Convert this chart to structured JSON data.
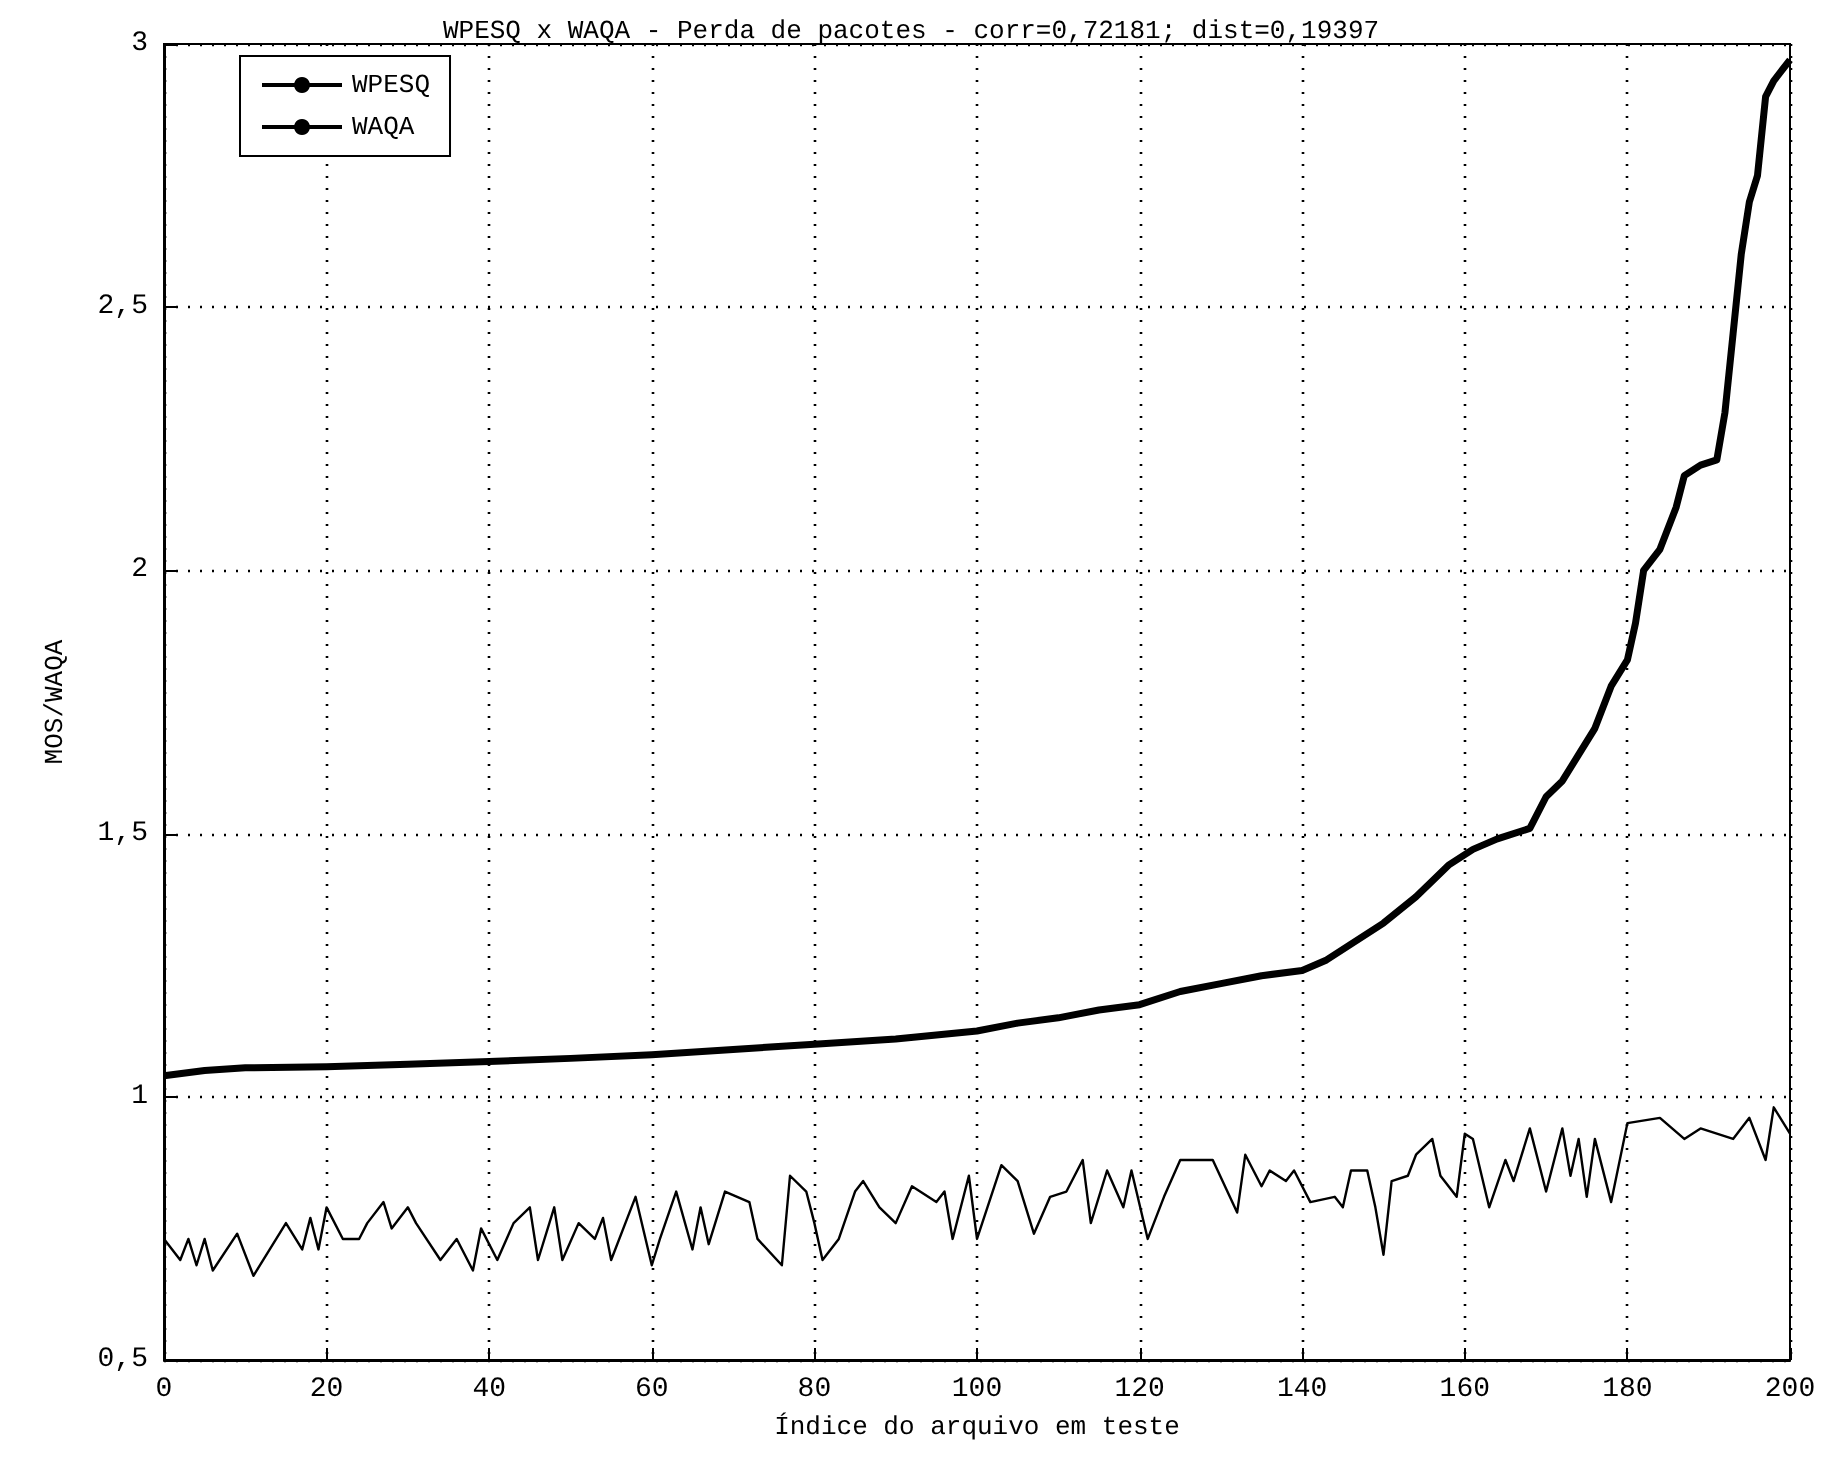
{
  "chart_data": {
    "type": "line",
    "title": "WPESQ x WAQA - Perda de pacotes - corr=0,72181; dist=0,19397",
    "xlabel": "Índice do arquivo em teste",
    "ylabel": "MOS/WAQA",
    "xlim": [
      0,
      200
    ],
    "xticks": [
      0,
      20,
      40,
      60,
      80,
      100,
      120,
      140,
      160,
      180,
      200
    ],
    "ylim": [
      0.5,
      3
    ],
    "yticks": [
      {
        "value": 0.5,
        "label": "0,5"
      },
      1,
      {
        "value": 1.5,
        "label": "1,5"
      },
      2,
      {
        "value": 2.5,
        "label": "2,5"
      },
      3
    ],
    "grid": true,
    "legend": "top left",
    "series": [
      {
        "name": "WPESQ",
        "color": "#000000",
        "x": [
          0,
          5,
          10,
          20,
          30,
          40,
          50,
          60,
          70,
          80,
          90,
          100,
          105,
          110,
          115,
          120,
          125,
          130,
          135,
          140,
          143,
          146,
          150,
          154,
          158,
          161,
          164,
          168,
          170,
          172,
          174,
          176,
          178,
          180,
          181,
          182,
          184,
          186,
          187,
          189,
          191,
          192,
          193,
          194,
          195,
          196,
          197,
          198,
          200
        ],
        "values": [
          1.04,
          1.05,
          1.055,
          1.057,
          1.062,
          1.067,
          1.073,
          1.08,
          1.09,
          1.1,
          1.11,
          1.125,
          1.14,
          1.15,
          1.165,
          1.175,
          1.2,
          1.215,
          1.23,
          1.24,
          1.26,
          1.29,
          1.33,
          1.38,
          1.44,
          1.47,
          1.49,
          1.51,
          1.57,
          1.6,
          1.65,
          1.7,
          1.78,
          1.83,
          1.9,
          2.0,
          2.04,
          2.12,
          2.18,
          2.2,
          2.21,
          2.3,
          2.45,
          2.6,
          2.7,
          2.75,
          2.9,
          2.93,
          2.97
        ]
      },
      {
        "name": "WAQA",
        "color": "#000000",
        "x": [
          0,
          2,
          3,
          4,
          5,
          6,
          9,
          11,
          15,
          17,
          18,
          19,
          20,
          22,
          24,
          25,
          27,
          28,
          30,
          31,
          34,
          36,
          38,
          39,
          41,
          43,
          45,
          46,
          48,
          49,
          51,
          53,
          54,
          55,
          57,
          58,
          60,
          61,
          63,
          65,
          66,
          67,
          69,
          72,
          73,
          76,
          77,
          79,
          80,
          81,
          83,
          85,
          86,
          88,
          90,
          92,
          95,
          96,
          97,
          99,
          100,
          103,
          105,
          107,
          109,
          111,
          113,
          114,
          116,
          118,
          119,
          121,
          123,
          125,
          127,
          129,
          132,
          133,
          135,
          136,
          138,
          139,
          141,
          144,
          145,
          146,
          148,
          149,
          150,
          151,
          153,
          154,
          156,
          157,
          159,
          160,
          161,
          163,
          165,
          166,
          168,
          170,
          172,
          173,
          174,
          175,
          176,
          178,
          180,
          184,
          187,
          189,
          193,
          195,
          197,
          198,
          200
        ],
        "values": [
          0.73,
          0.69,
          0.73,
          0.68,
          0.73,
          0.67,
          0.74,
          0.66,
          0.76,
          0.71,
          0.77,
          0.71,
          0.79,
          0.73,
          0.73,
          0.76,
          0.8,
          0.75,
          0.79,
          0.76,
          0.69,
          0.73,
          0.67,
          0.75,
          0.69,
          0.76,
          0.79,
          0.69,
          0.79,
          0.69,
          0.76,
          0.73,
          0.77,
          0.69,
          0.77,
          0.81,
          0.68,
          0.73,
          0.82,
          0.71,
          0.79,
          0.72,
          0.82,
          0.8,
          0.73,
          0.68,
          0.85,
          0.82,
          0.76,
          0.69,
          0.73,
          0.82,
          0.84,
          0.79,
          0.76,
          0.83,
          0.8,
          0.82,
          0.73,
          0.85,
          0.73,
          0.87,
          0.84,
          0.74,
          0.81,
          0.82,
          0.88,
          0.76,
          0.86,
          0.79,
          0.86,
          0.73,
          0.81,
          0.88,
          0.88,
          0.88,
          0.78,
          0.89,
          0.83,
          0.86,
          0.84,
          0.86,
          0.8,
          0.81,
          0.79,
          0.86,
          0.86,
          0.79,
          0.7,
          0.84,
          0.85,
          0.89,
          0.92,
          0.85,
          0.81,
          0.93,
          0.92,
          0.79,
          0.88,
          0.84,
          0.94,
          0.82,
          0.94,
          0.85,
          0.92,
          0.81,
          0.92,
          0.8,
          0.95,
          0.96,
          0.92,
          0.94,
          0.92,
          0.96,
          0.88,
          0.98,
          0.93
        ]
      }
    ]
  }
}
